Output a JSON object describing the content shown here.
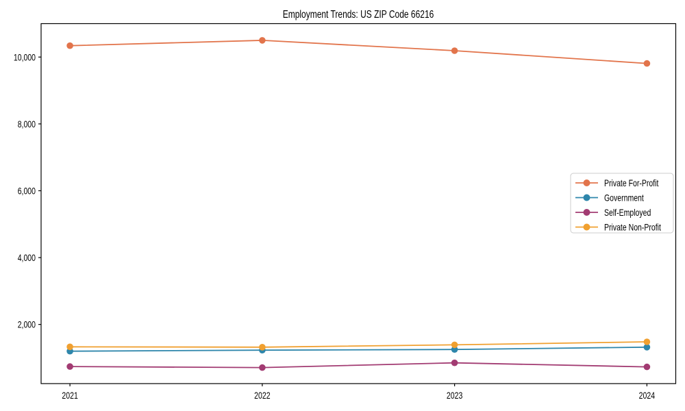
{
  "figure": {
    "background": "#ffffff",
    "frame_color": "#000000",
    "text_color": "#000000",
    "legend_border_color": "#cccccc"
  },
  "chart_data": {
    "type": "line",
    "title": "Employment Trends: US ZIP Code 66216",
    "xlabel": "",
    "ylabel": "",
    "categories": [
      "2021",
      "2022",
      "2023",
      "2024"
    ],
    "series": [
      {
        "name": "Private For-Profit",
        "color": "#e2744b",
        "values": [
          10340,
          10500,
          10190,
          9810
        ]
      },
      {
        "name": "Government",
        "color": "#2e86ab",
        "values": [
          1200,
          1230,
          1250,
          1320
        ]
      },
      {
        "name": "Self-Employed",
        "color": "#a23b72",
        "values": [
          740,
          710,
          850,
          730
        ]
      },
      {
        "name": "Private Non-Profit",
        "color": "#f0a030",
        "values": [
          1330,
          1320,
          1390,
          1480
        ]
      }
    ],
    "yticks": [
      {
        "value": 2000,
        "label": "2,000"
      },
      {
        "value": 4000,
        "label": "4,000"
      },
      {
        "value": 6000,
        "label": "6,000"
      },
      {
        "value": 8000,
        "label": "8,000"
      },
      {
        "value": 10000,
        "label": "10,000"
      }
    ],
    "ylim": [
      230,
      11000
    ],
    "grid": false,
    "marker": "circle",
    "legend_position": "center right",
    "legend_labels": [
      "Private For-Profit",
      "Government",
      "Self-Employed",
      "Private Non-Profit"
    ]
  }
}
